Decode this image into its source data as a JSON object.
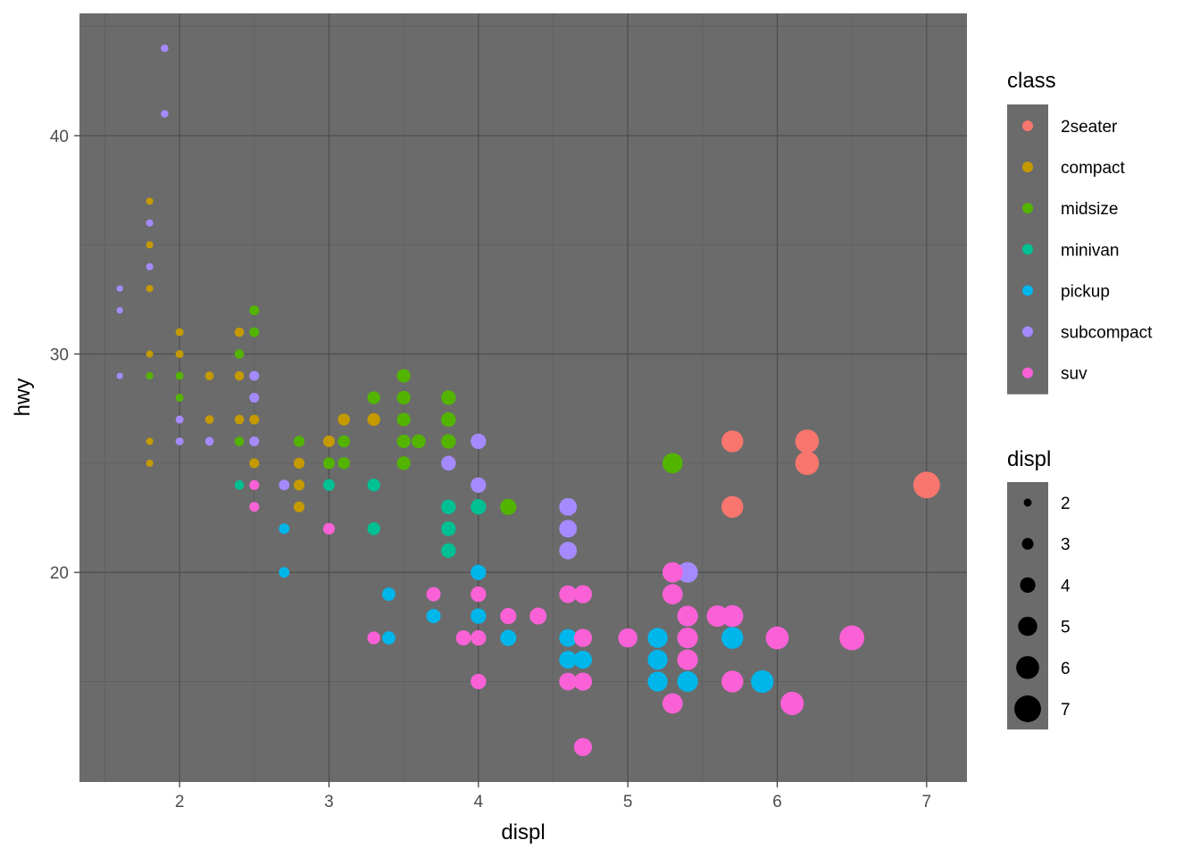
{
  "chart_data": {
    "type": "scatter",
    "title": "",
    "xlabel": "displ",
    "ylabel": "hwy",
    "xlim": [
      1.33,
      7.27
    ],
    "ylim": [
      10.4,
      45.6
    ],
    "x_ticks": [
      2,
      3,
      4,
      5,
      6,
      7
    ],
    "x_tick_labels": [
      "2",
      "3",
      "4",
      "5",
      "6",
      "7"
    ],
    "y_ticks": [
      20,
      30,
      40
    ],
    "y_tick_labels": [
      "20",
      "30",
      "40"
    ],
    "x_minor_ticks": [
      1.5,
      2.5,
      3.5,
      4.5,
      5.5,
      6.5
    ],
    "y_minor_ticks": [
      15,
      25,
      35,
      45
    ],
    "grid": true,
    "panel_background": "#6b6b6b",
    "legend_placement": "right",
    "color_legend": {
      "title": "class",
      "entries": [
        {
          "label": "2seater",
          "color": "#F8766D"
        },
        {
          "label": "compact",
          "color": "#C49A00"
        },
        {
          "label": "midsize",
          "color": "#53B400"
        },
        {
          "label": "minivan",
          "color": "#00C094"
        },
        {
          "label": "pickup",
          "color": "#00B6EB"
        },
        {
          "label": "subcompact",
          "color": "#A58AFF"
        },
        {
          "label": "suv",
          "color": "#FB61D7"
        }
      ]
    },
    "size_legend": {
      "title": "displ",
      "values": [
        2,
        3,
        4,
        5,
        6,
        7
      ],
      "labels": [
        "2",
        "3",
        "4",
        "5",
        "6",
        "7"
      ]
    },
    "series": [
      {
        "name": "2seater",
        "points": [
          [
            5.7,
            26
          ],
          [
            5.7,
            23
          ],
          [
            6.2,
            26
          ],
          [
            6.2,
            25
          ],
          [
            7.0,
            24
          ]
        ]
      },
      {
        "name": "compact",
        "points": [
          [
            1.8,
            37
          ],
          [
            1.8,
            35
          ],
          [
            1.8,
            33
          ],
          [
            1.8,
            30
          ],
          [
            1.8,
            29
          ],
          [
            1.8,
            26
          ],
          [
            1.8,
            25
          ],
          [
            2.0,
            31
          ],
          [
            2.0,
            30
          ],
          [
            2.2,
            29
          ],
          [
            2.2,
            27
          ],
          [
            2.4,
            31
          ],
          [
            2.4,
            29
          ],
          [
            2.4,
            27
          ],
          [
            2.5,
            27
          ],
          [
            2.5,
            25
          ],
          [
            2.8,
            25
          ],
          [
            2.8,
            24
          ],
          [
            2.8,
            23
          ],
          [
            3.0,
            26
          ],
          [
            3.1,
            27
          ],
          [
            3.3,
            27
          ]
        ]
      },
      {
        "name": "midsize",
        "points": [
          [
            1.8,
            29
          ],
          [
            2.0,
            29
          ],
          [
            2.0,
            28
          ],
          [
            2.4,
            30
          ],
          [
            2.4,
            26
          ],
          [
            2.5,
            32
          ],
          [
            2.5,
            31
          ],
          [
            2.8,
            26
          ],
          [
            3.0,
            25
          ],
          [
            3.1,
            26
          ],
          [
            3.1,
            25
          ],
          [
            3.3,
            28
          ],
          [
            3.5,
            29
          ],
          [
            3.5,
            28
          ],
          [
            3.5,
            27
          ],
          [
            3.5,
            26
          ],
          [
            3.5,
            25
          ],
          [
            3.6,
            26
          ],
          [
            3.8,
            28
          ],
          [
            3.8,
            27
          ],
          [
            3.8,
            26
          ],
          [
            4.2,
            23
          ],
          [
            5.3,
            25
          ]
        ]
      },
      {
        "name": "minivan",
        "points": [
          [
            2.4,
            24
          ],
          [
            3.0,
            24
          ],
          [
            3.3,
            24
          ],
          [
            3.3,
            22
          ],
          [
            3.8,
            23
          ],
          [
            3.8,
            22
          ],
          [
            3.8,
            21
          ],
          [
            4.0,
            23
          ]
        ]
      },
      {
        "name": "pickup",
        "points": [
          [
            2.7,
            22
          ],
          [
            2.7,
            20
          ],
          [
            3.4,
            19
          ],
          [
            3.4,
            17
          ],
          [
            3.7,
            18
          ],
          [
            4.0,
            20
          ],
          [
            4.0,
            18
          ],
          [
            4.2,
            17
          ],
          [
            4.6,
            17
          ],
          [
            4.6,
            16
          ],
          [
            4.7,
            16
          ],
          [
            5.2,
            17
          ],
          [
            5.2,
            16
          ],
          [
            5.2,
            15
          ],
          [
            5.4,
            15
          ],
          [
            5.7,
            17
          ],
          [
            5.9,
            15
          ]
        ]
      },
      {
        "name": "subcompact",
        "points": [
          [
            1.6,
            33
          ],
          [
            1.6,
            32
          ],
          [
            1.6,
            29
          ],
          [
            1.8,
            36
          ],
          [
            1.8,
            34
          ],
          [
            1.9,
            44
          ],
          [
            1.9,
            41
          ],
          [
            2.0,
            27
          ],
          [
            2.0,
            26
          ],
          [
            2.2,
            26
          ],
          [
            2.5,
            29
          ],
          [
            2.5,
            28
          ],
          [
            2.5,
            26
          ],
          [
            2.7,
            24
          ],
          [
            3.8,
            25
          ],
          [
            4.0,
            26
          ],
          [
            4.0,
            24
          ],
          [
            4.6,
            23
          ],
          [
            4.6,
            22
          ],
          [
            4.6,
            21
          ],
          [
            5.4,
            20
          ]
        ]
      },
      {
        "name": "suv",
        "points": [
          [
            2.5,
            24
          ],
          [
            2.5,
            23
          ],
          [
            3.0,
            22
          ],
          [
            3.3,
            17
          ],
          [
            3.7,
            19
          ],
          [
            3.9,
            17
          ],
          [
            4.0,
            19
          ],
          [
            4.0,
            17
          ],
          [
            4.0,
            15
          ],
          [
            4.2,
            18
          ],
          [
            4.4,
            18
          ],
          [
            4.6,
            19
          ],
          [
            4.6,
            15
          ],
          [
            4.7,
            19
          ],
          [
            4.7,
            17
          ],
          [
            4.7,
            15
          ],
          [
            4.7,
            12
          ],
          [
            5.0,
            17
          ],
          [
            5.3,
            20
          ],
          [
            5.3,
            19
          ],
          [
            5.3,
            14
          ],
          [
            5.4,
            18
          ],
          [
            5.4,
            17
          ],
          [
            5.4,
            16
          ],
          [
            5.6,
            18
          ],
          [
            5.7,
            18
          ],
          [
            5.7,
            15
          ],
          [
            6.0,
            17
          ],
          [
            6.1,
            14
          ],
          [
            6.5,
            17
          ]
        ]
      }
    ]
  }
}
